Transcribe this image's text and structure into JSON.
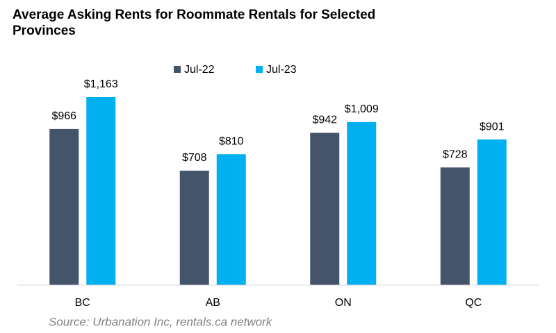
{
  "chart_data": {
    "type": "bar",
    "title": "Average Asking Rents for Roommate Rentals for Selected Provinces",
    "categories": [
      "BC",
      "AB",
      "ON",
      "QC"
    ],
    "series": [
      {
        "name": "Jul-22",
        "color": "#44546a",
        "values": [
          966,
          708,
          942,
          728
        ],
        "value_labels": [
          "$966",
          "$708",
          "$942",
          "$728"
        ]
      },
      {
        "name": "Jul-23",
        "color": "#00b0f0",
        "values": [
          1163,
          810,
          1009,
          901
        ],
        "value_labels": [
          "$1,163",
          "$810",
          "$1,009",
          "$901"
        ]
      }
    ],
    "legend": "top",
    "source": "Source: Urbanation Inc, rentals.ca network"
  }
}
